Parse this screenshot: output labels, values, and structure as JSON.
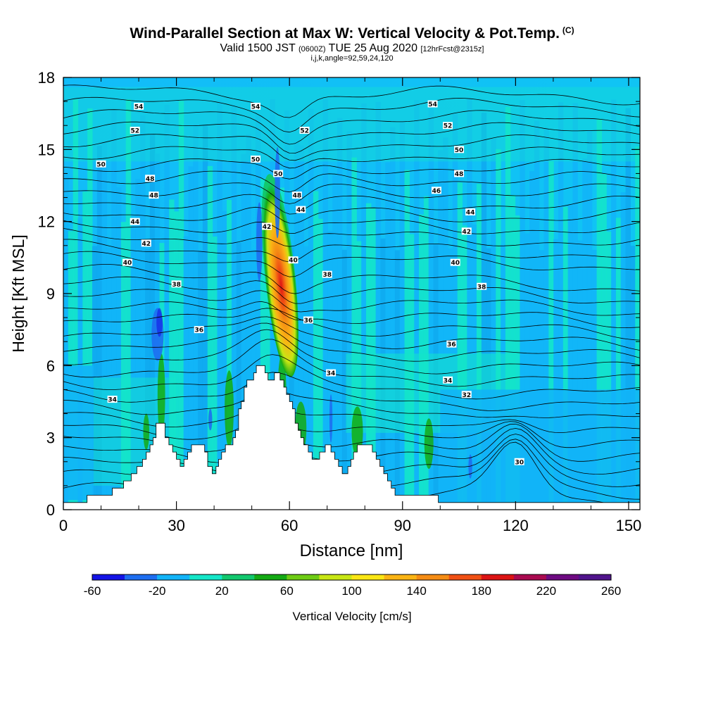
{
  "title": {
    "main": "Wind-Parallel Section at Max W: Vertical Velocity & Pot.Temp.",
    "main_unit": "(C)",
    "sub_a": "Valid 1500 JST",
    "sub_b": "(0600Z)",
    "sub_c": "TUE 25 Aug 2020",
    "sub_d": "[12hrFcst@2315z]",
    "sub2": "i,j,k,angle=92,59,24,120"
  },
  "chart_data": {
    "type": "heatmap",
    "xlabel": "Distance [nm]",
    "ylabel": "Height [Kft MSL]",
    "xlim": [
      0,
      153
    ],
    "ylim": [
      0,
      18
    ],
    "x_ticks": [
      0,
      30,
      60,
      90,
      120,
      150
    ],
    "y_ticks": [
      0,
      3,
      6,
      9,
      12,
      15,
      18
    ],
    "colorbar": {
      "label": "Vertical Velocity [cm/s]",
      "min": -60,
      "max": 260,
      "step": 20,
      "tick_labels": [
        "-60",
        "-20",
        "20",
        "60",
        "100",
        "140",
        "180",
        "220",
        "260"
      ],
      "colors": [
        "#1414e6",
        "#1e6ef0",
        "#12b4f8",
        "#14e6c8",
        "#12c86e",
        "#14aa14",
        "#6ecc14",
        "#c8e614",
        "#fae614",
        "#fab414",
        "#f58c14",
        "#f05014",
        "#dc1414",
        "#aa0a50",
        "#6e0a82",
        "#50148c"
      ]
    },
    "updraft": {
      "x_center": 57.5,
      "y_bottom": 5.5,
      "y_top": 14.0,
      "max_w": 200
    },
    "theta_contour_labels": [
      {
        "value": "54",
        "x": 20,
        "y": 16.8
      },
      {
        "value": "54",
        "x": 51,
        "y": 16.8
      },
      {
        "value": "54",
        "x": 98,
        "y": 16.9
      },
      {
        "value": "52",
        "x": 19,
        "y": 15.8
      },
      {
        "value": "52",
        "x": 64,
        "y": 15.8
      },
      {
        "value": "52",
        "x": 102,
        "y": 16.0
      },
      {
        "value": "50",
        "x": 10,
        "y": 14.4
      },
      {
        "value": "50",
        "x": 51,
        "y": 14.6
      },
      {
        "value": "50",
        "x": 105,
        "y": 15.0
      },
      {
        "value": "50",
        "x": 57,
        "y": 14.0
      },
      {
        "value": "48",
        "x": 23,
        "y": 13.8
      },
      {
        "value": "48",
        "x": 105,
        "y": 14.0
      },
      {
        "value": "48",
        "x": 24,
        "y": 13.1
      },
      {
        "value": "48",
        "x": 62,
        "y": 13.1
      },
      {
        "value": "46",
        "x": 99,
        "y": 13.3
      },
      {
        "value": "44",
        "x": 19,
        "y": 12.0
      },
      {
        "value": "44",
        "x": 63,
        "y": 12.5
      },
      {
        "value": "44",
        "x": 108,
        "y": 12.4
      },
      {
        "value": "42",
        "x": 22,
        "y": 11.1
      },
      {
        "value": "42",
        "x": 54,
        "y": 11.8
      },
      {
        "value": "42",
        "x": 107,
        "y": 11.6
      },
      {
        "value": "40",
        "x": 17,
        "y": 10.3
      },
      {
        "value": "40",
        "x": 61,
        "y": 10.4
      },
      {
        "value": "40",
        "x": 104,
        "y": 10.3
      },
      {
        "value": "38",
        "x": 30,
        "y": 9.4
      },
      {
        "value": "38",
        "x": 70,
        "y": 9.8
      },
      {
        "value": "38",
        "x": 111,
        "y": 9.3
      },
      {
        "value": "36",
        "x": 36,
        "y": 7.5
      },
      {
        "value": "36",
        "x": 65,
        "y": 7.9
      },
      {
        "value": "36",
        "x": 103,
        "y": 6.9
      },
      {
        "value": "34",
        "x": 13,
        "y": 4.6
      },
      {
        "value": "34",
        "x": 71,
        "y": 5.7
      },
      {
        "value": "34",
        "x": 102,
        "y": 5.4
      },
      {
        "value": "32",
        "x": 107,
        "y": 4.8
      },
      {
        "value": "30",
        "x": 121,
        "y": 2.0
      }
    ]
  }
}
